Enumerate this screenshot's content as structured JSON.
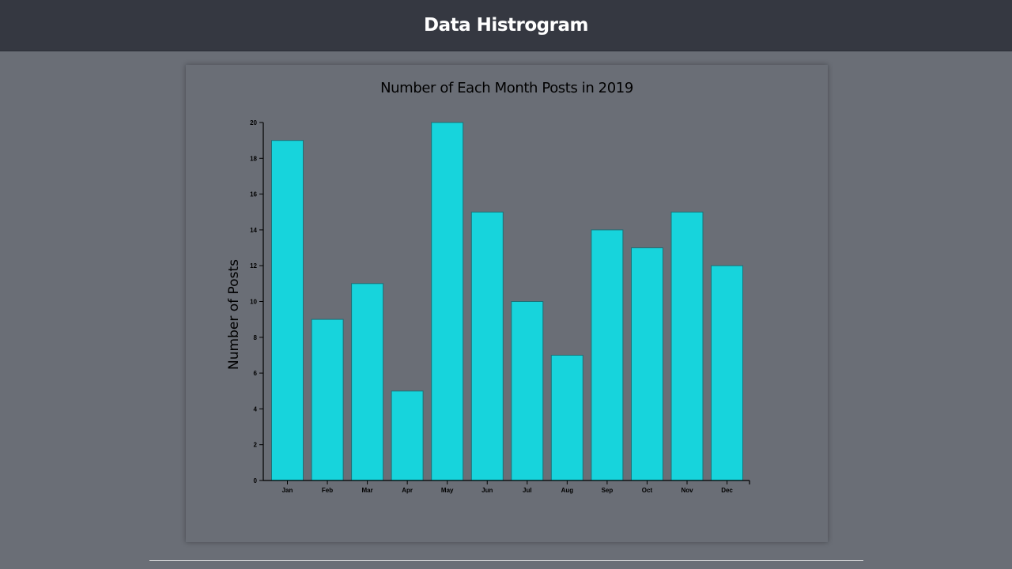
{
  "header": {
    "title": "Data Histrogram"
  },
  "colors": {
    "header_bg": "#353841",
    "page_bg": "#6a6e76",
    "bar_fill": "#17d4dc",
    "bar_stroke": "#1f6f75"
  },
  "chart_data": {
    "type": "bar",
    "title": "Number of Each Month Posts in 2019",
    "xlabel": "",
    "ylabel": "Number of Posts",
    "categories": [
      "Jan",
      "Feb",
      "Mar",
      "Apr",
      "May",
      "Jun",
      "Jul",
      "Aug",
      "Sep",
      "Oct",
      "Nov",
      "Dec"
    ],
    "values": [
      19,
      9,
      11,
      5,
      20,
      15,
      10,
      7,
      14,
      13,
      15,
      12
    ],
    "ylim": [
      0,
      20
    ],
    "yticks": [
      "0",
      "2",
      "4",
      "6",
      "8",
      "10",
      "12",
      "14",
      "16",
      "18",
      "20"
    ],
    "grid": false,
    "legend": "none"
  }
}
